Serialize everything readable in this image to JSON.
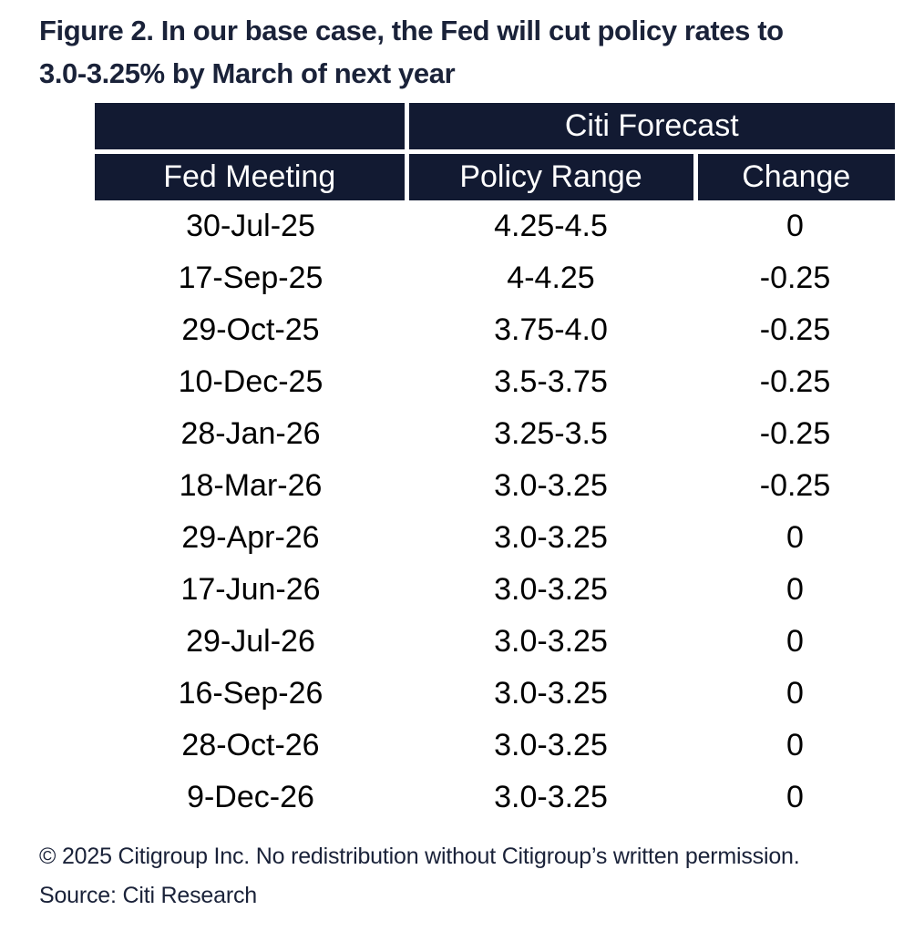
{
  "figure": {
    "title_line1": "Figure 2. In our base case, the Fed will cut policy rates to",
    "title_line2": "3.0-3.25% by March of next year"
  },
  "table": {
    "group_header": "Citi Forecast",
    "columns": [
      "Fed Meeting",
      "Policy Range",
      "Change"
    ],
    "rows": [
      {
        "meeting": "30-Jul-25",
        "policy_range": "4.25-4.5",
        "change": "0"
      },
      {
        "meeting": "17-Sep-25",
        "policy_range": "4-4.25",
        "change": "-0.25"
      },
      {
        "meeting": "29-Oct-25",
        "policy_range": "3.75-4.0",
        "change": "-0.25"
      },
      {
        "meeting": "10-Dec-25",
        "policy_range": "3.5-3.75",
        "change": "-0.25"
      },
      {
        "meeting": "28-Jan-26",
        "policy_range": "3.25-3.5",
        "change": "-0.25"
      },
      {
        "meeting": "18-Mar-26",
        "policy_range": "3.0-3.25",
        "change": "-0.25"
      },
      {
        "meeting": "29-Apr-26",
        "policy_range": "3.0-3.25",
        "change": "0"
      },
      {
        "meeting": "17-Jun-26",
        "policy_range": "3.0-3.25",
        "change": "0"
      },
      {
        "meeting": "29-Jul-26",
        "policy_range": "3.0-3.25",
        "change": "0"
      },
      {
        "meeting": "16-Sep-26",
        "policy_range": "3.0-3.25",
        "change": "0"
      },
      {
        "meeting": "28-Oct-26",
        "policy_range": "3.0-3.25",
        "change": "0"
      },
      {
        "meeting": "9-Dec-26",
        "policy_range": "3.0-3.25",
        "change": "0"
      }
    ]
  },
  "footer": {
    "copyright": "© 2025 Citigroup Inc. No redistribution without Citigroup’s written permission.",
    "source": "Source: Citi Research"
  },
  "colors": {
    "header_background": "#121A32",
    "header_text": "#FFFFFF",
    "title_text": "#1A2239",
    "body_text": "#000000"
  }
}
